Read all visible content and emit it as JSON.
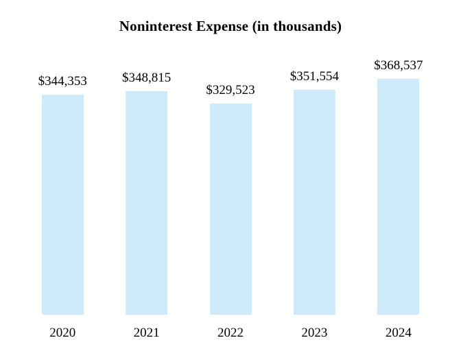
{
  "chart_data": {
    "type": "bar",
    "title": "Noninterest Expense (in thousands)",
    "categories": [
      "2020",
      "2021",
      "2022",
      "2023",
      "2024"
    ],
    "values": [
      344353,
      348815,
      329523,
      351554,
      368537
    ],
    "value_labels": [
      "$344,353",
      "$348,815",
      "$329,523",
      "$351,554",
      "$368,537"
    ],
    "xlabel": "",
    "ylabel": "",
    "ylim": [
      0,
      385000
    ],
    "grid": false,
    "legend": false,
    "axes_visible": false,
    "bar_color": "#CDEBFA",
    "text_color": "#000000",
    "background_color": "#FFFFFF"
  }
}
